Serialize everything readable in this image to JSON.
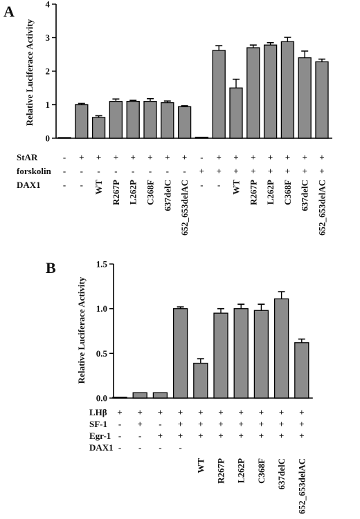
{
  "chart_data": [
    {
      "panel": "A",
      "type": "bar",
      "ylabel": "Relative Luciferace Activity",
      "ylim": [
        0,
        4
      ],
      "yticks": [
        "0",
        "1",
        "2",
        "3",
        "4"
      ],
      "values": [
        0.02,
        1.0,
        0.62,
        1.1,
        1.1,
        1.1,
        1.06,
        0.94,
        0.03,
        2.62,
        1.5,
        2.7,
        2.78,
        2.88,
        2.4,
        2.28
      ],
      "errors": [
        0.0,
        0.04,
        0.05,
        0.07,
        0.03,
        0.08,
        0.05,
        0.03,
        0.0,
        0.14,
        0.26,
        0.08,
        0.07,
        0.13,
        0.2,
        0.08
      ],
      "condition_rows": [
        {
          "label": "StAR",
          "values": [
            "-",
            "+",
            "+",
            "+",
            "+",
            "+",
            "+",
            "+",
            "-",
            "+",
            "+",
            "+",
            "+",
            "+",
            "+",
            "+"
          ]
        },
        {
          "label": "forskolin",
          "values": [
            "-",
            "-",
            "-",
            "-",
            "-",
            "-",
            "-",
            "-",
            "+",
            "+",
            "+",
            "+",
            "+",
            "+",
            "+",
            "+"
          ]
        },
        {
          "label": "DAX1",
          "values": [
            "-",
            "-",
            "WT",
            "R267P",
            "L262P",
            "C368F",
            "637delC",
            "652_653delAC",
            "-",
            "-",
            "WT",
            "R267P",
            "L262P",
            "C368F",
            "637delC",
            "652_653delAC"
          ]
        }
      ]
    },
    {
      "panel": "B",
      "type": "bar",
      "ylabel": "Relative Luciferace Activity",
      "ylim": [
        0,
        1.5
      ],
      "yticks": [
        "0.0",
        "0.5",
        "1.0",
        "1.5"
      ],
      "values": [
        0.01,
        0.06,
        0.06,
        1.0,
        0.39,
        0.95,
        1.0,
        0.98,
        1.11,
        0.62
      ],
      "errors": [
        0.0,
        0.0,
        0.0,
        0.02,
        0.05,
        0.05,
        0.05,
        0.07,
        0.08,
        0.04
      ],
      "condition_rows": [
        {
          "label": "LHβ",
          "values": [
            "+",
            "+",
            "+",
            "+",
            "+",
            "+",
            "+",
            "+",
            "+",
            "+"
          ]
        },
        {
          "label": "SF-1",
          "values": [
            "-",
            "+",
            "-",
            "+",
            "+",
            "+",
            "+",
            "+",
            "+",
            "+"
          ]
        },
        {
          "label": "Egr-1",
          "values": [
            "-",
            "-",
            "+",
            "+",
            "+",
            "+",
            "+",
            "+",
            "+",
            "+"
          ]
        },
        {
          "label": "DAX1",
          "values": [
            "-",
            "-",
            "-",
            "-",
            "WT",
            "R267P",
            "L262P",
            "C368F",
            "637delC",
            "652_653delAC"
          ]
        }
      ]
    }
  ],
  "colors": {
    "bar": "#8c8c8c",
    "stroke": "#000000"
  }
}
